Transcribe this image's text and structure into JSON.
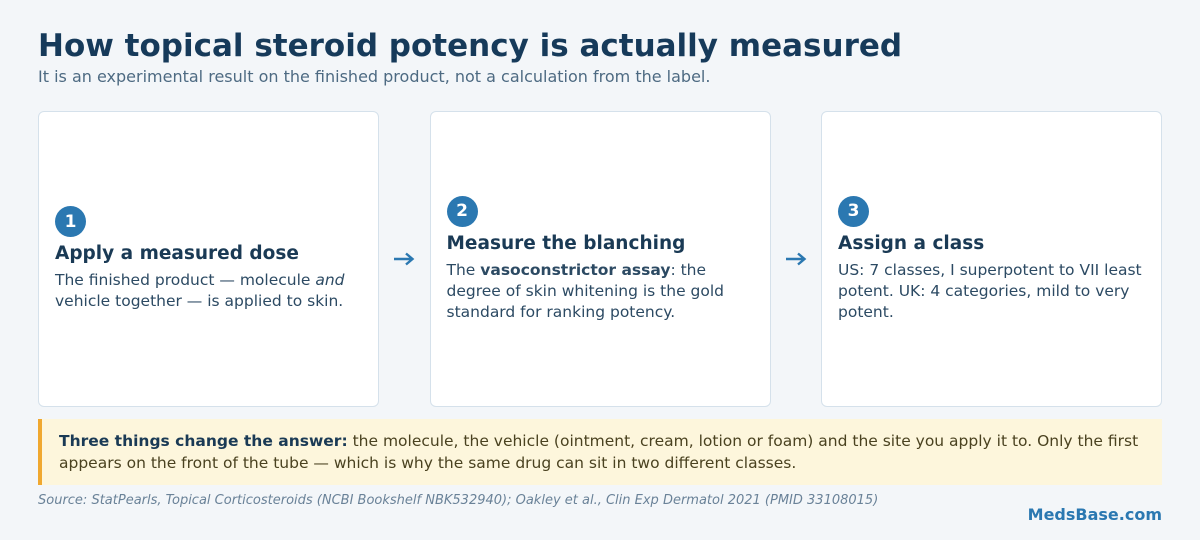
{
  "header": {
    "title": "How topical steroid potency is actually measured",
    "subtitle": "It is an experimental result on the finished product, not a calculation from the label."
  },
  "steps": [
    {
      "number": "1",
      "title": "Apply a measured dose",
      "body": [
        "The finished product — molecule ",
        "and",
        " vehicle together — is applied to skin."
      ]
    },
    {
      "number": "2",
      "title": "Measure the blanching",
      "body": [
        "The ",
        "vasoconstrictor assay",
        ": the degree of skin whitening is the gold standard for ranking potency."
      ]
    },
    {
      "number": "3",
      "title": "Assign a class",
      "body": [
        "US: 7 classes, I superpotent to VII least potent. UK: 4 categories, mild to very potent."
      ]
    }
  ],
  "callout": {
    "lead": "Three things change the answer:",
    "text": " the molecule, the vehicle (ointment, cream, lotion or foam) and the site you apply it to. Only the first appears on the front of the tube — which is why the same drug can sit in two different classes."
  },
  "source": "Source: StatPearls, Topical Corticosteroids (NCBI Bookshelf NBK532940); Oakley et al., Clin Exp Dermatol 2021 (PMID 33108015)",
  "brand": "MedsBase.com"
}
